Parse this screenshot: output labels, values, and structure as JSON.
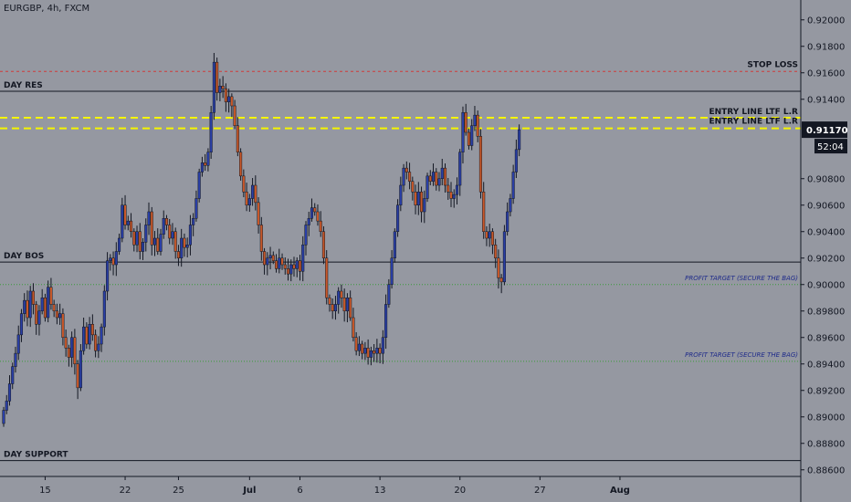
{
  "symbol_header": "EURGBP, 4h, FXCM",
  "colors": {
    "background": "#9598a1",
    "axis_background": "#9598a1",
    "up_candle": "#2a3fa6",
    "down_candle": "#c8582a",
    "wick": "#131722",
    "level_line": "#131722",
    "stop_loss_line": "#d03a3a",
    "entry_line": "#f5f500",
    "target_line": "#3a9a3a",
    "target_text": "#1e2a8a",
    "price_tag_bg": "#131722",
    "price_tag_text": "#ffffff"
  },
  "chart_data": {
    "type": "candlestick",
    "title": "",
    "xlabel": "",
    "ylabel": "",
    "ylim": [
      0.8855,
      0.9215
    ],
    "y_ticks": [
      "0.92000",
      "0.91800",
      "0.91600",
      "0.91400",
      "0.91170",
      "0.90800",
      "0.90600",
      "0.90400",
      "0.90200",
      "0.90000",
      "0.89800",
      "0.89600",
      "0.89400",
      "0.89200",
      "0.89000",
      "0.88800",
      "0.88600"
    ],
    "y_tick_values": [
      0.92,
      0.918,
      0.916,
      0.914,
      0.9117,
      0.908,
      0.906,
      0.904,
      0.902,
      0.9,
      0.898,
      0.896,
      0.894,
      0.892,
      0.89,
      0.888,
      0.886
    ],
    "x_ticks": [
      "15",
      "22",
      "25",
      "Jul",
      "6",
      "13",
      "20",
      "27",
      "Aug"
    ],
    "x_tick_index": [
      14,
      41,
      59,
      83,
      100,
      127,
      154,
      181,
      208
    ],
    "last_price": "0.91170",
    "countdown": "52:04",
    "levels": [
      {
        "label": "STOP LOSS",
        "price": 0.9161,
        "style": "stop"
      },
      {
        "label": "DAY RES",
        "price": 0.9146,
        "style": "level"
      },
      {
        "label": "ENTRY LINE LTF L.R",
        "price": 0.9126,
        "style": "entry"
      },
      {
        "label": "ENTRY LINE LTF L.R",
        "price": 0.9118,
        "style": "entry"
      },
      {
        "label": "DAY BOS",
        "price": 0.9017,
        "style": "level"
      },
      {
        "label": "PROFIT TARGET (SECURE THE BAG)",
        "price": 0.9,
        "style": "target"
      },
      {
        "label": "PROFIT TARGET (SECURE THE BAG)",
        "price": 0.8942,
        "style": "target"
      },
      {
        "label": "DAY SUPPORT",
        "price": 0.8867,
        "style": "level"
      }
    ],
    "closes": [
      0.8905,
      0.8912,
      0.8925,
      0.8938,
      0.8948,
      0.8962,
      0.8978,
      0.8988,
      0.8975,
      0.8995,
      0.8985,
      0.897,
      0.898,
      0.899,
      0.8975,
      0.8998,
      0.8985,
      0.898,
      0.8975,
      0.8978,
      0.896,
      0.8952,
      0.8945,
      0.896,
      0.894,
      0.8922,
      0.895,
      0.8968,
      0.8955,
      0.897,
      0.8962,
      0.895,
      0.8955,
      0.8968,
      0.8995,
      0.9018,
      0.902,
      0.9015,
      0.9025,
      0.9035,
      0.906,
      0.9045,
      0.9048,
      0.904,
      0.903,
      0.904,
      0.9025,
      0.9032,
      0.9045,
      0.9055,
      0.903,
      0.9035,
      0.9025,
      0.9038,
      0.905,
      0.9045,
      0.9035,
      0.904,
      0.9025,
      0.902,
      0.9035,
      0.9028,
      0.903,
      0.9045,
      0.905,
      0.9065,
      0.9085,
      0.9092,
      0.909,
      0.91,
      0.913,
      0.9168,
      0.9145,
      0.915,
      0.9148,
      0.9138,
      0.9142,
      0.9135,
      0.912,
      0.91,
      0.9082,
      0.907,
      0.906,
      0.9065,
      0.9075,
      0.9062,
      0.9045,
      0.9025,
      0.9015,
      0.902,
      0.9022,
      0.9018,
      0.9012,
      0.902,
      0.9015,
      0.9012,
      0.9008,
      0.9015,
      0.9012,
      0.9018,
      0.901,
      0.903,
      0.9045,
      0.905,
      0.9058,
      0.9055,
      0.9048,
      0.904,
      0.902,
      0.899,
      0.8985,
      0.898,
      0.8985,
      0.8995,
      0.899,
      0.898,
      0.899,
      0.8975,
      0.896,
      0.895,
      0.8955,
      0.8948,
      0.8952,
      0.8945,
      0.895,
      0.8948,
      0.8952,
      0.8948,
      0.896,
      0.8985,
      0.9,
      0.902,
      0.904,
      0.906,
      0.9075,
      0.9088,
      0.9085,
      0.9078,
      0.907,
      0.906,
      0.907,
      0.9055,
      0.9065,
      0.9082,
      0.9078,
      0.9085,
      0.9075,
      0.908,
      0.9088,
      0.9075,
      0.907,
      0.9065,
      0.9068,
      0.9075,
      0.91,
      0.913,
      0.9115,
      0.9105,
      0.912,
      0.9128,
      0.9112,
      0.907,
      0.904,
      0.9035,
      0.904,
      0.903,
      0.902,
      0.9005,
      0.9002,
      0.904,
      0.9055,
      0.9065,
      0.9085,
      0.9102,
      0.9117
    ],
    "series_start_open": 0.8895
  }
}
